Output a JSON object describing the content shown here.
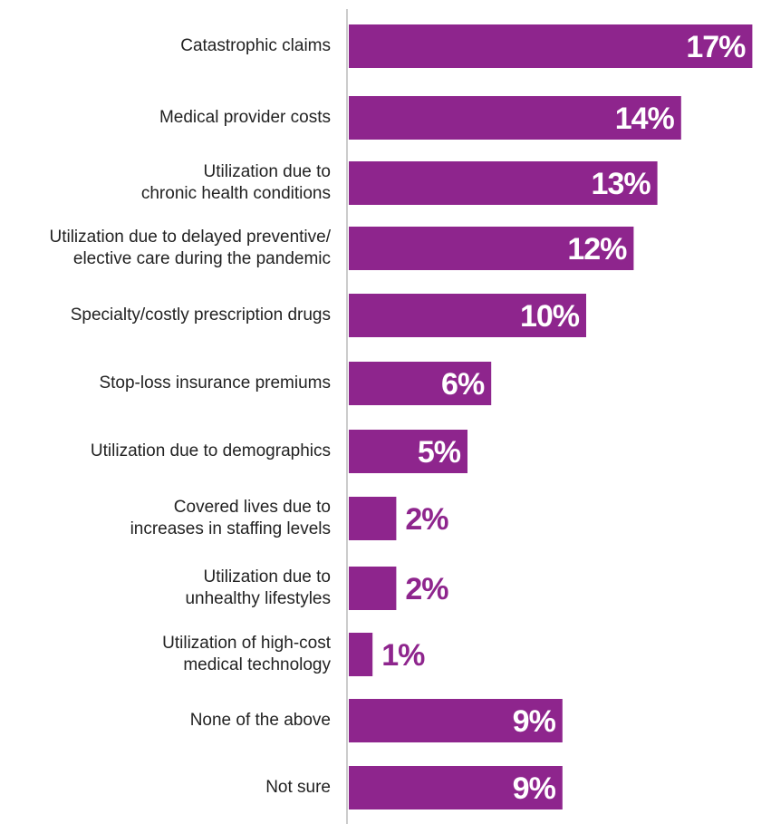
{
  "chart_data": {
    "type": "bar",
    "orientation": "horizontal",
    "categories": [
      "Catastrophic claims",
      "Medical provider costs",
      "Utilization due to\nchronic health conditions",
      "Utilization due to delayed preventive/\nelective care during the pandemic",
      "Specialty/costly prescription drugs",
      "Stop-loss insurance premiums",
      "Utilization due to demographics",
      "Covered lives due to\nincreases in staffing levels",
      "Utilization due to\nunhealthy lifestyles",
      "Utilization of high-cost\nmedical technology",
      "None of the above",
      "Not sure"
    ],
    "values": [
      17,
      14,
      13,
      12,
      10,
      6,
      5,
      2,
      2,
      1,
      9,
      9
    ],
    "value_labels": [
      "17%",
      "14%",
      "13%",
      "12%",
      "10%",
      "6%",
      "5%",
      "2%",
      "2%",
      "1%",
      "9%",
      "9%"
    ],
    "unit": "%",
    "bar_color": "#8e258d",
    "axis_color": "#cccccc",
    "title": "",
    "xlabel": "",
    "ylabel": "",
    "grid": false,
    "legend": "none"
  }
}
